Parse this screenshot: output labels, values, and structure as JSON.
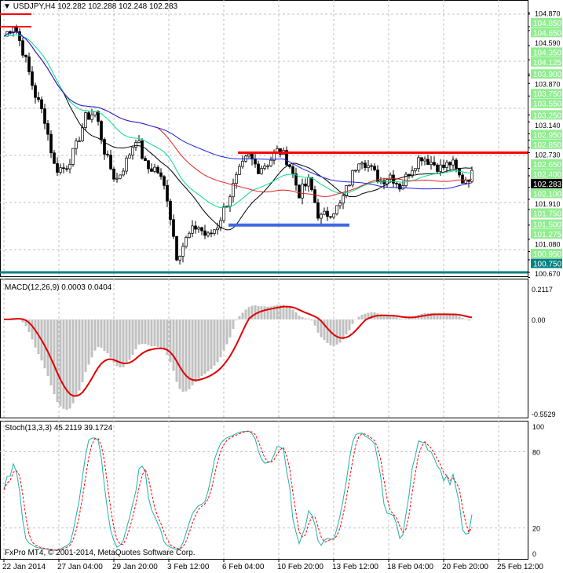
{
  "header": {
    "symbol_info": "USDJPY,H4  102.282 102.288 102.248 102.283"
  },
  "macd_label": "MACD(12,26,9) 0.0003 0.0404",
  "stoch_label": "Stoch(13,3,3) 45.2119 39.1724",
  "copyright": "FxPro MT4, © 2001-2014, MetaQuotes Software Corp.",
  "chart_data": {
    "type": "candlestick",
    "price_ticks_green": [
      "104.850",
      "104.650",
      "104.350",
      "104.125",
      "103.900",
      "103.750",
      "103.550",
      "103.250",
      "102.950",
      "102.850",
      "102.650",
      "102.400",
      "102.100",
      "101.750",
      "101.500",
      "101.275",
      "100.950",
      "100.750"
    ],
    "price_ticks_black": [
      "104.870",
      "104.590",
      "103.870",
      "103.140",
      "102.730",
      "101.910",
      "101.080",
      "100.670"
    ],
    "current_price": "102.283",
    "ylim": [
      100.67,
      104.87
    ],
    "levels": [
      {
        "price": 104.85,
        "color": "#ff0000"
      },
      {
        "price": 104.65,
        "color": "#ff0000"
      },
      {
        "price": 102.65,
        "color": "#ff0000"
      },
      {
        "price": 101.5,
        "color": "#4169e1"
      },
      {
        "price": 100.75,
        "color": "#008080"
      }
    ],
    "close_keypoints": [
      104.5,
      104.7,
      104.2,
      103.6,
      103.2,
      102.4,
      102.4,
      102.7,
      103.2,
      103.3,
      102.6,
      102.2,
      102.5,
      102.9,
      102.4,
      102.4,
      102.0,
      101.0,
      101.3,
      101.5,
      101.3,
      101.5,
      101.9,
      102.3,
      102.6,
      102.4,
      102.5,
      102.7,
      102.5,
      102.0,
      102.2,
      101.6,
      101.7,
      101.8,
      102.2,
      102.6,
      102.4,
      102.2,
      102.3,
      102.1,
      102.4,
      102.6,
      102.5,
      102.4,
      102.5,
      102.2,
      102.3
    ],
    "macd_ticks": [
      "0.2117",
      "0.00",
      "-0.5529"
    ],
    "stoch_ticks": [
      "100",
      "80",
      "20",
      "0"
    ],
    "x_ticks": [
      "22 Jan 2014",
      "27 Jan 04:00",
      "29 Jan 20:00",
      "3 Feb 12:00",
      "6 Feb 04:00",
      "10 Feb 20:00",
      "13 Feb 12:00",
      "18 Feb 04:00",
      "20 Feb 20:00",
      "25 Feb 12:00"
    ]
  }
}
